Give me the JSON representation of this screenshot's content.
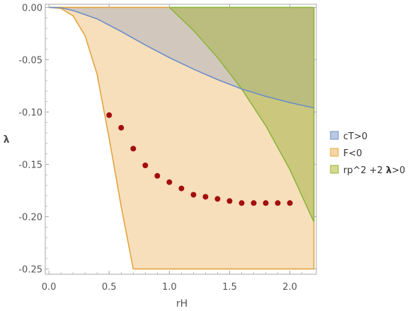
{
  "chart_data": {
    "type": "scatter",
    "title": "",
    "xlabel": "rH",
    "ylabel": "λ",
    "xlim": [
      -0.03,
      2.22
    ],
    "ylim": [
      -0.255,
      0.003
    ],
    "x_ticks": [
      0.0,
      0.5,
      1.0,
      1.5,
      2.0
    ],
    "x_tick_labels": [
      "0.0",
      "0.5",
      "1.0",
      "1.5",
      "2.0"
    ],
    "y_ticks": [
      0.0,
      -0.05,
      -0.1,
      -0.15,
      -0.2,
      -0.25
    ],
    "y_tick_labels": [
      "0.00",
      "-0.05",
      "-0.10",
      "-0.15",
      "-0.20",
      "-0.25"
    ],
    "grid": false,
    "legend_position": "right",
    "legend": [
      {
        "label": "cT>0",
        "fill": "#b9c9e2",
        "stroke": "#6f8fc4"
      },
      {
        "label": "F<0",
        "fill": "#f6d6a4",
        "stroke": "#e3a84a"
      },
      {
        "label_parts": [
          "rp^2 +2 ",
          "λ",
          ">0"
        ],
        "fill": "#d6d992",
        "stroke": "#96b43a"
      }
    ],
    "regions": [
      {
        "name": "F<0",
        "fill": "#f7dfbc",
        "stroke": "#e4a43e",
        "boundary_x": [
          0.0,
          0.1,
          0.2,
          0.3,
          0.4,
          0.5,
          0.6,
          0.7
        ],
        "boundary_y": [
          0.0,
          -0.001,
          -0.008,
          -0.027,
          -0.064,
          -0.125,
          -0.19,
          -0.25
        ],
        "x_max": 2.2,
        "y_min": -0.25
      },
      {
        "name": "cT>0",
        "fill": "#b4b2bd",
        "fill_opacity": 0.55,
        "stroke": "#6b8ec6",
        "curve_x": [
          0.0,
          0.1,
          0.2,
          0.4,
          0.6,
          0.8,
          1.0,
          1.2,
          1.4,
          1.6,
          1.8,
          2.0,
          2.2
        ],
        "curve_y": [
          0.0,
          -0.0004,
          -0.003,
          -0.011,
          -0.023,
          -0.036,
          -0.048,
          -0.059,
          -0.069,
          -0.078,
          -0.085,
          -0.091,
          -0.096
        ]
      },
      {
        "name": "rp^2 +2 λ>0",
        "fill": "#a8b44a",
        "fill_opacity": 0.55,
        "stroke": "#8db53a",
        "curve_x": [
          1.0,
          1.2,
          1.4,
          1.6,
          1.8,
          2.0,
          2.2
        ],
        "curve_y": [
          0.0,
          -0.022,
          -0.048,
          -0.078,
          -0.113,
          -0.155,
          -0.205
        ]
      }
    ],
    "points": {
      "color": "#a30e0e",
      "x": [
        0.5,
        0.6,
        0.7,
        0.8,
        0.9,
        1.0,
        1.1,
        1.2,
        1.3,
        1.4,
        1.5,
        1.6,
        1.7,
        1.8,
        1.9,
        2.0
      ],
      "y": [
        -0.103,
        -0.115,
        -0.135,
        -0.151,
        -0.161,
        -0.167,
        -0.173,
        -0.179,
        -0.181,
        -0.183,
        -0.185,
        -0.187,
        -0.187,
        -0.187,
        -0.187,
        -0.187
      ]
    },
    "frame_color": "#aaaaaa"
  }
}
